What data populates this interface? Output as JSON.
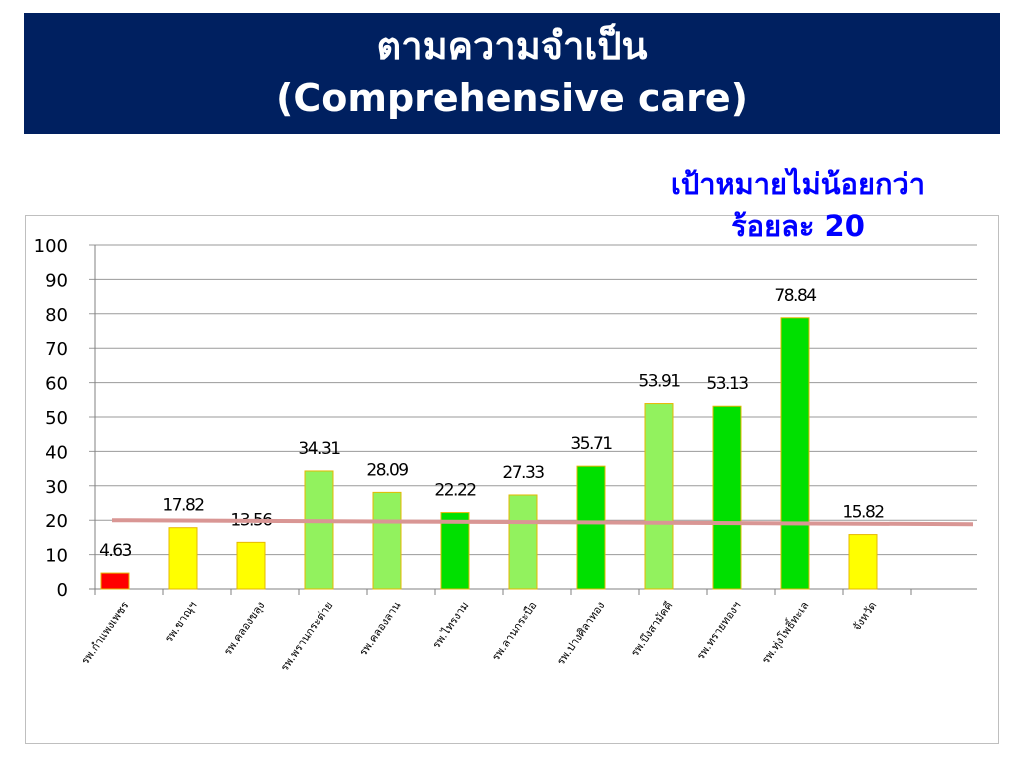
{
  "header": {
    "title_line1": "ตามความจำเป็น",
    "title_line2": "(Comprehensive care)"
  },
  "annotation": {
    "line1": "เป้าหมายไม่น้อยกว่า",
    "line2": "ร้อยละ 20"
  },
  "colors": {
    "title_bg": "#002060",
    "red": "#ff0000",
    "yellow": "#ffff00",
    "light_green": "#92f25e",
    "green": "#00e000",
    "target_line": "#d99694",
    "annotation_text": "#0000ff"
  },
  "chart_data": {
    "type": "bar",
    "title": "",
    "xlabel": "",
    "ylabel": "",
    "ylim": [
      0,
      100
    ],
    "yticks": [
      0,
      10,
      20,
      30,
      40,
      50,
      60,
      70,
      80,
      90,
      100
    ],
    "grid": true,
    "legend": "none",
    "categories": [
      "รพ.กำแพงเพชร",
      "รพ.ขาณุฯ",
      "รพ.คลองขลุง",
      "รพ.พรานกระต่าย",
      "รพ.คลองลาน",
      "รพ.ไทรงาม",
      "รพ.ลานกระบือ",
      "รพ.ปางศิลาทอง",
      "รพ.บึงสามัคคี",
      "รพ.ทรายทองฯ",
      "รพ.ทุ่งโพธิ์ทะเล",
      "จังหวัด"
    ],
    "values": [
      4.63,
      17.82,
      13.56,
      34.31,
      28.09,
      22.22,
      27.33,
      35.71,
      53.91,
      53.13,
      78.84,
      15.82
    ],
    "value_labels": [
      "4.63",
      "17.82",
      "13.56",
      "34.31",
      "28.09",
      "22.22",
      "27.33",
      "35.71",
      "53.91",
      "53.13",
      "78.84",
      "15.82"
    ],
    "bar_colors": [
      "#ff0000",
      "#ffff00",
      "#ffff00",
      "#92f25e",
      "#92f25e",
      "#00e000",
      "#92f25e",
      "#00e000",
      "#92f25e",
      "#00e000",
      "#00e000",
      "#ffff00"
    ],
    "target": 20
  }
}
